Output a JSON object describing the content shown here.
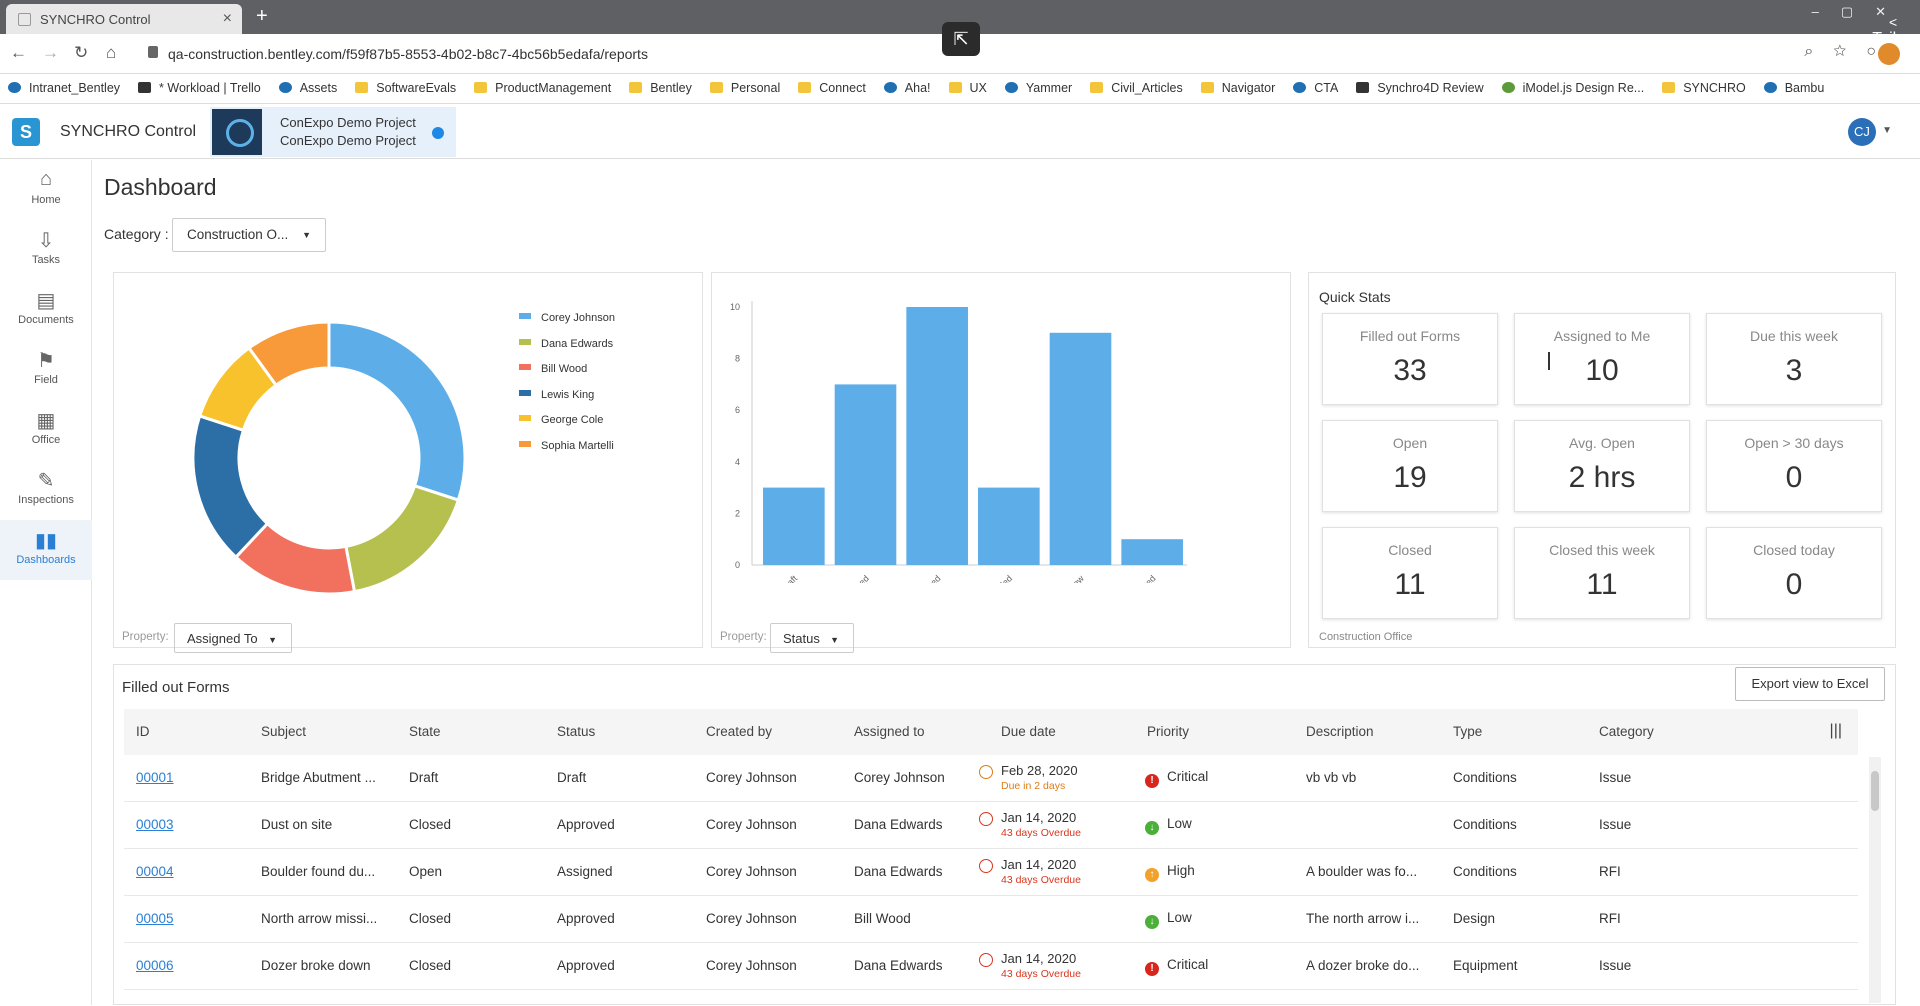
{
  "browser": {
    "tab_title": "SYNCHRO Control",
    "url": "qa-construction.bentley.com/f59f87b5-8553-4b02-b8c7-4bc56b5edafa/reports",
    "teilen": "Teilen",
    "bookmarks": [
      "Intranet_Bentley",
      "* Workload | Trello",
      "Assets",
      "SoftwareEvals",
      "ProductManagement",
      "Bentley",
      "Personal",
      "Connect",
      "Aha!",
      "UX",
      "Yammer",
      "Civil_Articles",
      "Navigator",
      "CTA",
      "Synchro4D Review",
      "iModel.js Design Re...",
      "SYNCHRO",
      "Bambu"
    ]
  },
  "app": {
    "name": "SYNCHRO Control",
    "project_line1": "ConExpo Demo Project",
    "project_line2": "ConExpo Demo Project",
    "user_initials": "CJ"
  },
  "sidebar": {
    "items": [
      {
        "label": "Home",
        "icon": "home-icon"
      },
      {
        "label": "Tasks",
        "icon": "tasks-icon"
      },
      {
        "label": "Documents",
        "icon": "documents-icon"
      },
      {
        "label": "Field",
        "icon": "field-icon"
      },
      {
        "label": "Office",
        "icon": "office-icon"
      },
      {
        "label": "Inspections",
        "icon": "inspections-icon"
      },
      {
        "label": "Dashboards",
        "icon": "dashboards-icon"
      }
    ],
    "active": "Dashboards"
  },
  "dashboard": {
    "title": "Dashboard",
    "category_label": "Category :",
    "category_value": "Construction O...",
    "pie_property_label": "Property:",
    "pie_property_value": "Assigned To",
    "bar_property_label": "Property:",
    "bar_property_value": "Status"
  },
  "chart_data": [
    {
      "type": "pie",
      "labels": [
        "Corey Johnson",
        "Dana Edwards",
        "Bill Wood",
        "Lewis King",
        "George Cole",
        "Sophia Martelli"
      ],
      "values": [
        30,
        17,
        15,
        18,
        10,
        10
      ],
      "colors": [
        "#5daee8",
        "#b5c04f",
        "#f2705e",
        "#2c6fa6",
        "#f8c22c",
        "#f89a3a"
      ],
      "legend": "right"
    },
    {
      "type": "bar",
      "categories": [
        "Draft",
        "Approved",
        "Assigned",
        "Voided",
        "Review",
        "Rejected"
      ],
      "values": [
        3,
        7,
        10,
        3,
        9,
        1
      ],
      "ylim": [
        0,
        10
      ],
      "yticks": [
        0,
        2,
        4,
        6,
        8,
        10
      ],
      "color": "#5daee8"
    }
  ],
  "quick_stats": {
    "title": "Quick Stats",
    "footer": "Construction Office",
    "items": [
      {
        "label": "Filled out Forms",
        "value": "33"
      },
      {
        "label": "Assigned to Me",
        "value": "10"
      },
      {
        "label": "Due this week",
        "value": "3"
      },
      {
        "label": "Open",
        "value": "19"
      },
      {
        "label": "Avg. Open",
        "value": "2 hrs"
      },
      {
        "label": "Open > 30 days",
        "value": "0"
      },
      {
        "label": "Closed",
        "value": "11"
      },
      {
        "label": "Closed this week",
        "value": "11"
      },
      {
        "label": "Closed today",
        "value": "0"
      }
    ]
  },
  "forms": {
    "title": "Filled out Forms",
    "export_label": "Export view to Excel",
    "columns": [
      "ID",
      "Subject",
      "State",
      "Status",
      "Created by",
      "Assigned to",
      "Due date",
      "Priority",
      "Description",
      "Type",
      "Category"
    ],
    "rows": [
      {
        "id": "00001",
        "subject": "Bridge Abutment ...",
        "state": "Draft",
        "status": "Draft",
        "created_by": "Corey Johnson",
        "assigned_to": "Corey Johnson",
        "due_date": "Feb 28, 2020",
        "due_note": "Due in 2 days",
        "due_color": "orange",
        "priority": "Critical",
        "description": "vb vb vb",
        "type": "Conditions",
        "category": "Issue"
      },
      {
        "id": "00003",
        "subject": "Dust on site",
        "state": "Closed",
        "status": "Approved",
        "created_by": "Corey Johnson",
        "assigned_to": "Dana Edwards",
        "due_date": "Jan 14, 2020",
        "due_note": "43 days Overdue",
        "due_color": "red",
        "priority": "Low",
        "description": "",
        "type": "Conditions",
        "category": "Issue"
      },
      {
        "id": "00004",
        "subject": "Boulder found du...",
        "state": "Open",
        "status": "Assigned",
        "created_by": "Corey Johnson",
        "assigned_to": "Dana Edwards",
        "due_date": "Jan 14, 2020",
        "due_note": "43 days Overdue",
        "due_color": "red",
        "priority": "High",
        "description": "A boulder was fo...",
        "type": "Conditions",
        "category": "RFI"
      },
      {
        "id": "00005",
        "subject": "North arrow missi...",
        "state": "Closed",
        "status": "Approved",
        "created_by": "Corey Johnson",
        "assigned_to": "Bill Wood",
        "due_date": "",
        "due_note": "",
        "due_color": "",
        "priority": "Low",
        "description": "The north arrow i...",
        "type": "Design",
        "category": "RFI"
      },
      {
        "id": "00006",
        "subject": "Dozer broke down",
        "state": "Closed",
        "status": "Approved",
        "created_by": "Corey Johnson",
        "assigned_to": "Dana Edwards",
        "due_date": "Jan 14, 2020",
        "due_note": "43 days Overdue",
        "due_color": "red",
        "priority": "Critical",
        "description": "A dozer broke do...",
        "type": "Equipment",
        "category": "Issue"
      }
    ],
    "priority_colors": {
      "Critical": "#d9261c",
      "Low": "#4caf3a",
      "High": "#f2a12b"
    },
    "priority_marks": {
      "Critical": "!",
      "Low": "↓",
      "High": "↑"
    }
  }
}
